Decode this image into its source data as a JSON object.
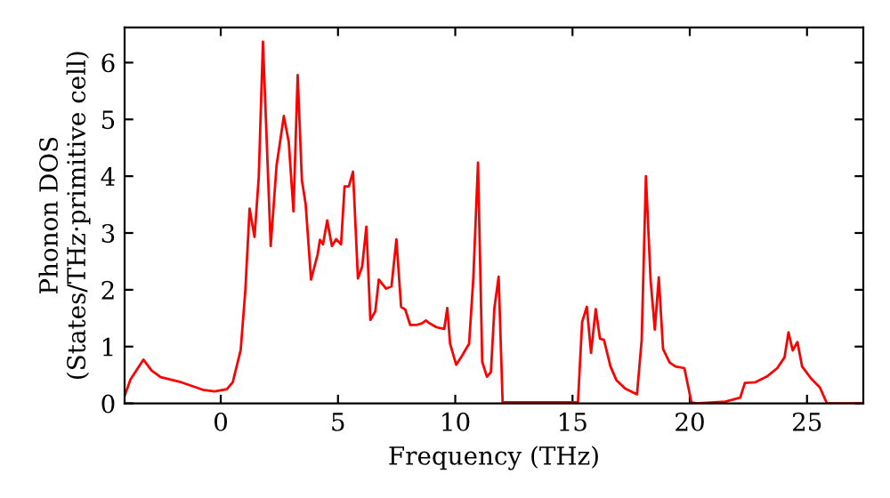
{
  "chart_data": {
    "type": "line",
    "xlabel": "Frequency (THz)",
    "ylabel": "Phonon DOS\n(States/THz·primitive cell)",
    "xlim": [
      -4.1,
      27.4
    ],
    "ylim": [
      0,
      6.62
    ],
    "xticks": [
      0,
      5,
      10,
      15,
      20,
      25
    ],
    "yticks": [
      0,
      1,
      2,
      3,
      4,
      5,
      6
    ],
    "grid": false,
    "legend": false,
    "series": [
      {
        "color": "#ff0000",
        "x": [
          -4.1,
          -3.85,
          -3.3,
          -2.95,
          -2.56,
          -1.67,
          -0.77,
          -0.26,
          0.26,
          0.51,
          0.85,
          1.05,
          1.23,
          1.44,
          1.62,
          1.8,
          2.13,
          2.38,
          2.51,
          2.69,
          2.9,
          3.1,
          3.28,
          3.46,
          3.62,
          3.85,
          4.13,
          4.23,
          4.36,
          4.54,
          4.74,
          4.92,
          5.13,
          5.28,
          5.46,
          5.64,
          5.85,
          6.03,
          6.21,
          6.38,
          6.59,
          6.74,
          7.05,
          7.28,
          7.49,
          7.69,
          7.87,
          8.08,
          8.33,
          8.58,
          8.75,
          8.9,
          9.2,
          9.53,
          9.66,
          9.78,
          10.04,
          10.29,
          10.59,
          10.77,
          10.97,
          11.15,
          11.35,
          11.52,
          11.67,
          11.85,
          12.02,
          15.14,
          15.23,
          15.41,
          15.61,
          15.79,
          15.99,
          16.17,
          16.34,
          16.62,
          16.87,
          17.25,
          17.75,
          17.95,
          18.13,
          18.33,
          18.51,
          18.68,
          18.86,
          19.14,
          19.39,
          19.77,
          20.07,
          20.27,
          21.52,
          22.15,
          22.35,
          22.78,
          23.28,
          23.73,
          24.04,
          24.21,
          24.39,
          24.59,
          24.79,
          25.17,
          25.55,
          25.85,
          27.4
        ],
        "values": [
          0.13,
          0.42,
          0.77,
          0.58,
          0.46,
          0.37,
          0.24,
          0.21,
          0.25,
          0.37,
          0.94,
          2.0,
          3.43,
          2.93,
          3.98,
          6.37,
          2.77,
          4.19,
          4.55,
          5.06,
          4.6,
          3.38,
          5.78,
          3.93,
          3.51,
          2.18,
          2.62,
          2.88,
          2.8,
          3.22,
          2.77,
          2.89,
          2.8,
          3.82,
          3.82,
          4.08,
          2.2,
          2.41,
          3.11,
          1.47,
          1.62,
          2.18,
          2.02,
          2.06,
          2.89,
          1.7,
          1.65,
          1.38,
          1.38,
          1.41,
          1.46,
          1.41,
          1.34,
          1.31,
          1.68,
          1.05,
          0.68,
          0.84,
          1.05,
          2.2,
          4.24,
          0.73,
          0.47,
          0.55,
          1.68,
          2.23,
          0.02,
          0.02,
          0,
          1.43,
          1.7,
          0.89,
          1.66,
          1.14,
          1.12,
          0.65,
          0.41,
          0.26,
          0.16,
          1.12,
          4.0,
          2.17,
          1.3,
          2.22,
          0.96,
          0.72,
          0.65,
          0.62,
          0.02,
          0,
          0.03,
          0.1,
          0.36,
          0.37,
          0.47,
          0.62,
          0.81,
          1.25,
          0.93,
          1.08,
          0.65,
          0.44,
          0.28,
          0,
          0
        ]
      }
    ]
  }
}
